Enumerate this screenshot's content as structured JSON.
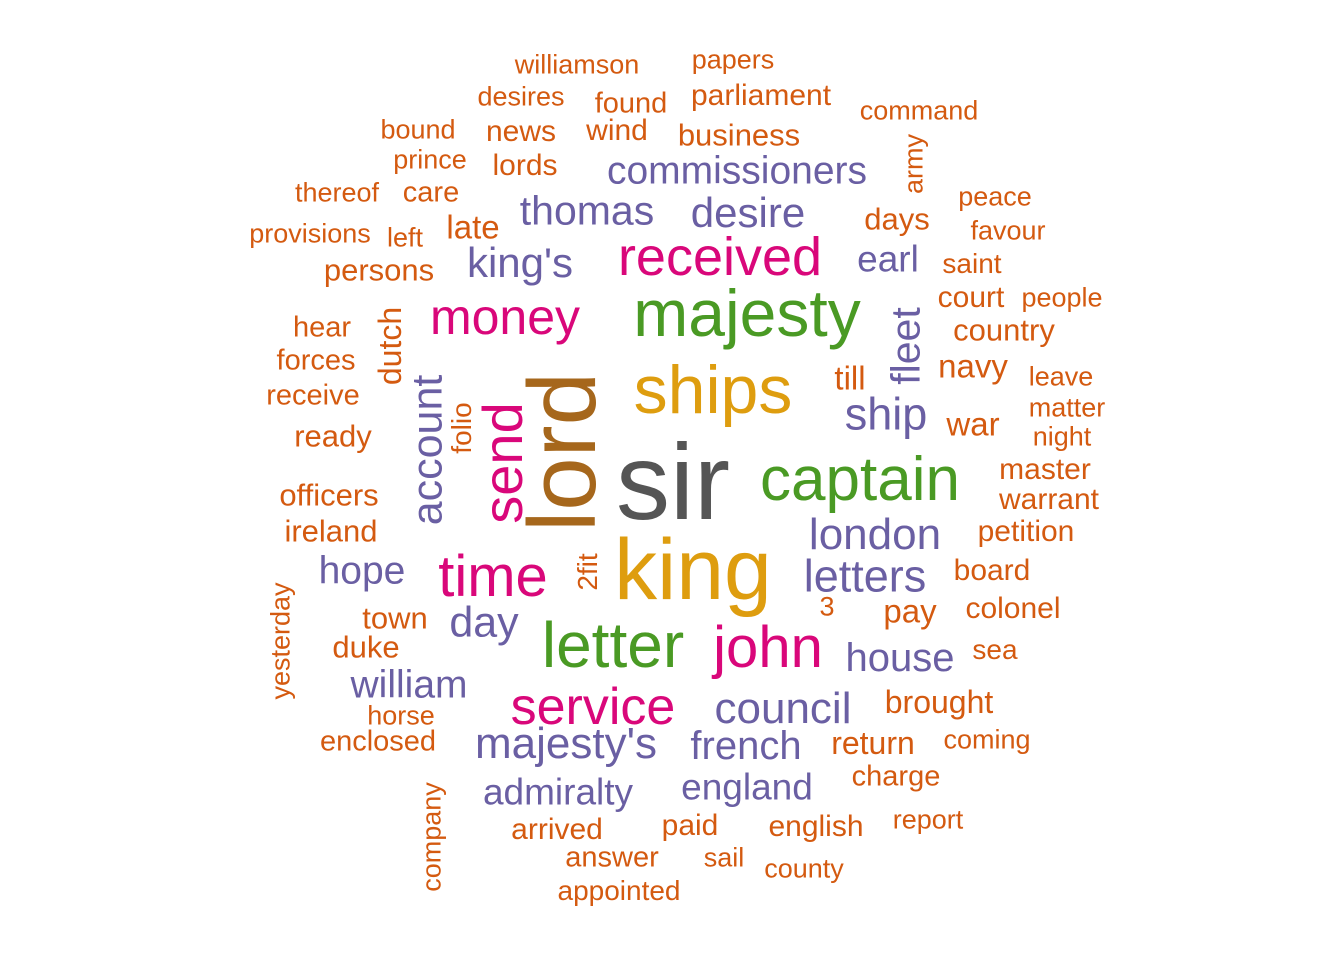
{
  "palette": {
    "gray": "#555555",
    "brown": "#a6671c",
    "gold": "#de9d0f",
    "green": "#4a9a24",
    "magenta": "#d9077a",
    "purple": "#6a5fa3",
    "orange": "#d45a10"
  },
  "words": [
    {
      "text": "sir",
      "weight": 100,
      "color": "gray"
    },
    {
      "text": "lord",
      "weight": 90,
      "color": "brown",
      "rotated": true
    },
    {
      "text": "king",
      "weight": 82,
      "color": "gold"
    },
    {
      "text": "ships",
      "weight": 68,
      "color": "gold"
    },
    {
      "text": "majesty",
      "weight": 66,
      "color": "green"
    },
    {
      "text": "captain",
      "weight": 62,
      "color": "green"
    },
    {
      "text": "letter",
      "weight": 64,
      "color": "green"
    },
    {
      "text": "received",
      "weight": 54,
      "color": "magenta"
    },
    {
      "text": "john",
      "weight": 58,
      "color": "magenta"
    },
    {
      "text": "time",
      "weight": 58,
      "color": "magenta"
    },
    {
      "text": "send",
      "weight": 54,
      "color": "magenta",
      "rotated": true
    },
    {
      "text": "service",
      "weight": 52,
      "color": "magenta"
    },
    {
      "text": "money",
      "weight": 50,
      "color": "magenta"
    },
    {
      "text": "ship",
      "weight": 45,
      "color": "purple"
    },
    {
      "text": "letters",
      "weight": 45,
      "color": "purple"
    },
    {
      "text": "london",
      "weight": 44,
      "color": "purple"
    },
    {
      "text": "majesty's",
      "weight": 44,
      "color": "purple"
    },
    {
      "text": "council",
      "weight": 44,
      "color": "purple"
    },
    {
      "text": "day",
      "weight": 43,
      "color": "purple"
    },
    {
      "text": "account",
      "weight": 43,
      "color": "purple",
      "rotated": true
    },
    {
      "text": "king's",
      "weight": 42,
      "color": "purple"
    },
    {
      "text": "desire",
      "weight": 42,
      "color": "purple"
    },
    {
      "text": "thomas",
      "weight": 41,
      "color": "purple"
    },
    {
      "text": "fleet",
      "weight": 41,
      "color": "purple",
      "rotated": true
    },
    {
      "text": "french",
      "weight": 40,
      "color": "purple"
    },
    {
      "text": "house",
      "weight": 40,
      "color": "purple"
    },
    {
      "text": "william",
      "weight": 39,
      "color": "purple"
    },
    {
      "text": "hope",
      "weight": 39,
      "color": "purple"
    },
    {
      "text": "commissioners",
      "weight": 39,
      "color": "purple"
    },
    {
      "text": "admiralty",
      "weight": 37,
      "color": "purple"
    },
    {
      "text": "england",
      "weight": 37,
      "color": "purple"
    },
    {
      "text": "earl",
      "weight": 37,
      "color": "purple"
    },
    {
      "text": "navy",
      "weight": 33,
      "color": "orange"
    },
    {
      "text": "war",
      "weight": 33,
      "color": "orange"
    },
    {
      "text": "till",
      "weight": 33,
      "color": "orange"
    },
    {
      "text": "pay",
      "weight": 33,
      "color": "orange"
    },
    {
      "text": "late",
      "weight": 33,
      "color": "orange"
    },
    {
      "text": "dutch",
      "weight": 32,
      "color": "orange",
      "rotated": true
    },
    {
      "text": "brought",
      "weight": 32,
      "color": "orange"
    },
    {
      "text": "return",
      "weight": 32,
      "color": "orange"
    },
    {
      "text": "persons",
      "weight": 31,
      "color": "orange"
    },
    {
      "text": "ready",
      "weight": 31,
      "color": "orange"
    },
    {
      "text": "officers",
      "weight": 31,
      "color": "orange"
    },
    {
      "text": "ireland",
      "weight": 31,
      "color": "orange"
    },
    {
      "text": "town",
      "weight": 31,
      "color": "orange"
    },
    {
      "text": "duke",
      "weight": 31,
      "color": "orange"
    },
    {
      "text": "business",
      "weight": 31,
      "color": "orange"
    },
    {
      "text": "days",
      "weight": 31,
      "color": "orange"
    },
    {
      "text": "country",
      "weight": 31,
      "color": "orange"
    },
    {
      "text": "court",
      "weight": 30,
      "color": "orange"
    },
    {
      "text": "master",
      "weight": 30,
      "color": "orange"
    },
    {
      "text": "warrant",
      "weight": 30,
      "color": "orange"
    },
    {
      "text": "petition",
      "weight": 30,
      "color": "orange"
    },
    {
      "text": "board",
      "weight": 30,
      "color": "orange"
    },
    {
      "text": "colonel",
      "weight": 30,
      "color": "orange"
    },
    {
      "text": "english",
      "weight": 30,
      "color": "orange"
    },
    {
      "text": "paid",
      "weight": 30,
      "color": "orange"
    },
    {
      "text": "arrived",
      "weight": 30,
      "color": "orange"
    },
    {
      "text": "parliament",
      "weight": 30,
      "color": "orange"
    },
    {
      "text": "lords",
      "weight": 30,
      "color": "orange"
    },
    {
      "text": "news",
      "weight": 30,
      "color": "orange"
    },
    {
      "text": "wind",
      "weight": 30,
      "color": "orange"
    },
    {
      "text": "hear",
      "weight": 29,
      "color": "orange"
    },
    {
      "text": "forces",
      "weight": 29,
      "color": "orange"
    },
    {
      "text": "receive",
      "weight": 29,
      "color": "orange"
    },
    {
      "text": "enclosed",
      "weight": 29,
      "color": "orange"
    },
    {
      "text": "charge",
      "weight": 29,
      "color": "orange"
    },
    {
      "text": "answer",
      "weight": 29,
      "color": "orange"
    },
    {
      "text": "care",
      "weight": 29,
      "color": "orange"
    },
    {
      "text": "found",
      "weight": 29,
      "color": "orange"
    },
    {
      "text": "folio",
      "weight": 28,
      "color": "orange",
      "rotated": true
    },
    {
      "text": "2fit",
      "weight": 28,
      "color": "orange",
      "rotated": true
    },
    {
      "text": "appointed",
      "weight": 28,
      "color": "orange"
    },
    {
      "text": "sea",
      "weight": 28,
      "color": "orange"
    },
    {
      "text": "saint",
      "weight": 28,
      "color": "orange"
    },
    {
      "text": "leave",
      "weight": 27,
      "color": "orange"
    },
    {
      "text": "matter",
      "weight": 27,
      "color": "orange"
    },
    {
      "text": "night",
      "weight": 27,
      "color": "orange"
    },
    {
      "text": "people",
      "weight": 27,
      "color": "orange"
    },
    {
      "text": "peace",
      "weight": 27,
      "color": "orange"
    },
    {
      "text": "favour",
      "weight": 27,
      "color": "orange"
    },
    {
      "text": "command",
      "weight": 27,
      "color": "orange"
    },
    {
      "text": "army",
      "weight": 27,
      "color": "orange",
      "rotated": true
    },
    {
      "text": "papers",
      "weight": 27,
      "color": "orange"
    },
    {
      "text": "williamson",
      "weight": 27,
      "color": "orange"
    },
    {
      "text": "desires",
      "weight": 27,
      "color": "orange"
    },
    {
      "text": "bound",
      "weight": 27,
      "color": "orange"
    },
    {
      "text": "prince",
      "weight": 27,
      "color": "orange"
    },
    {
      "text": "thereof",
      "weight": 27,
      "color": "orange"
    },
    {
      "text": "left",
      "weight": 27,
      "color": "orange"
    },
    {
      "text": "provisions",
      "weight": 27,
      "color": "orange"
    },
    {
      "text": "yesterday",
      "weight": 27,
      "color": "orange",
      "rotated": true
    },
    {
      "text": "horse",
      "weight": 27,
      "color": "orange"
    },
    {
      "text": "coming",
      "weight": 27,
      "color": "orange"
    },
    {
      "text": "report",
      "weight": 27,
      "color": "orange"
    },
    {
      "text": "county",
      "weight": 27,
      "color": "orange"
    },
    {
      "text": "sail",
      "weight": 27,
      "color": "orange"
    },
    {
      "text": "company",
      "weight": 27,
      "color": "orange",
      "rotated": true
    },
    {
      "text": "3",
      "weight": 27,
      "color": "orange"
    }
  ]
}
